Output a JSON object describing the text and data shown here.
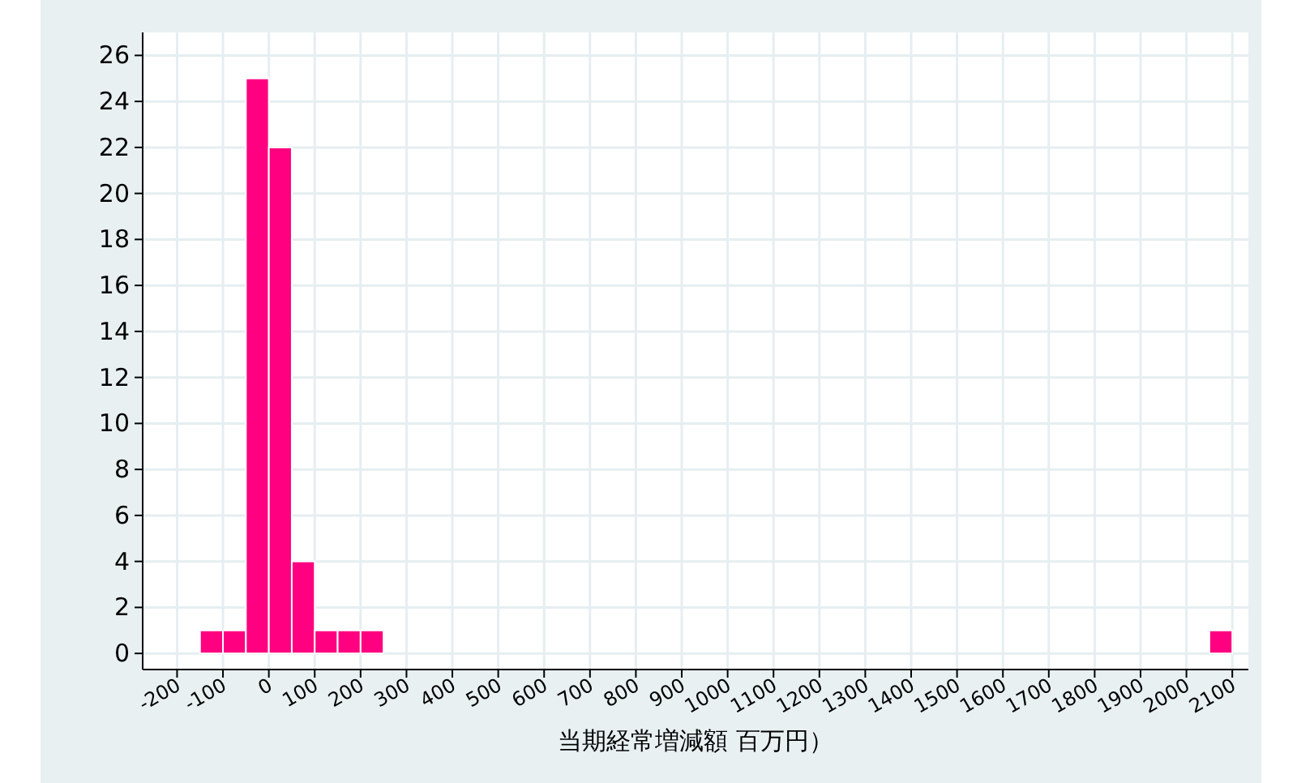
{
  "chart_data": {
    "type": "histogram",
    "xlabel": "当期経常増減額 百万円）",
    "bins": [
      -150,
      -100,
      -50,
      0,
      50,
      100,
      150,
      200,
      250,
      300,
      350,
      400,
      450,
      500,
      550,
      600,
      650,
      700,
      750,
      800,
      850,
      900,
      950,
      1000,
      1050,
      1100,
      1150,
      1200,
      1250,
      1300,
      1350,
      1400,
      1450,
      1500,
      1550,
      1600,
      1650,
      1700,
      1750,
      1800,
      1850,
      1900,
      1950,
      2000,
      2050,
      2100
    ],
    "values": [
      1,
      1,
      25,
      22,
      4,
      1,
      1,
      1,
      0,
      0,
      0,
      0,
      0,
      0,
      0,
      0,
      0,
      0,
      0,
      0,
      0,
      0,
      0,
      0,
      0,
      0,
      0,
      0,
      0,
      0,
      0,
      0,
      0,
      0,
      0,
      0,
      0,
      0,
      0,
      0,
      0,
      0,
      0,
      0,
      1
    ],
    "color": "#ff0080",
    "xlim": [
      -275,
      2135
    ],
    "ylim": [
      -0.7,
      27
    ],
    "xticks": [
      -200,
      -100,
      0,
      100,
      200,
      300,
      400,
      500,
      600,
      700,
      800,
      900,
      1000,
      1100,
      1200,
      1300,
      1400,
      1500,
      1600,
      1700,
      1800,
      1900,
      2000,
      2100
    ],
    "yticks": [
      0,
      2,
      4,
      6,
      8,
      10,
      12,
      14,
      16,
      18,
      20,
      22,
      24,
      26
    ],
    "grid": true
  }
}
